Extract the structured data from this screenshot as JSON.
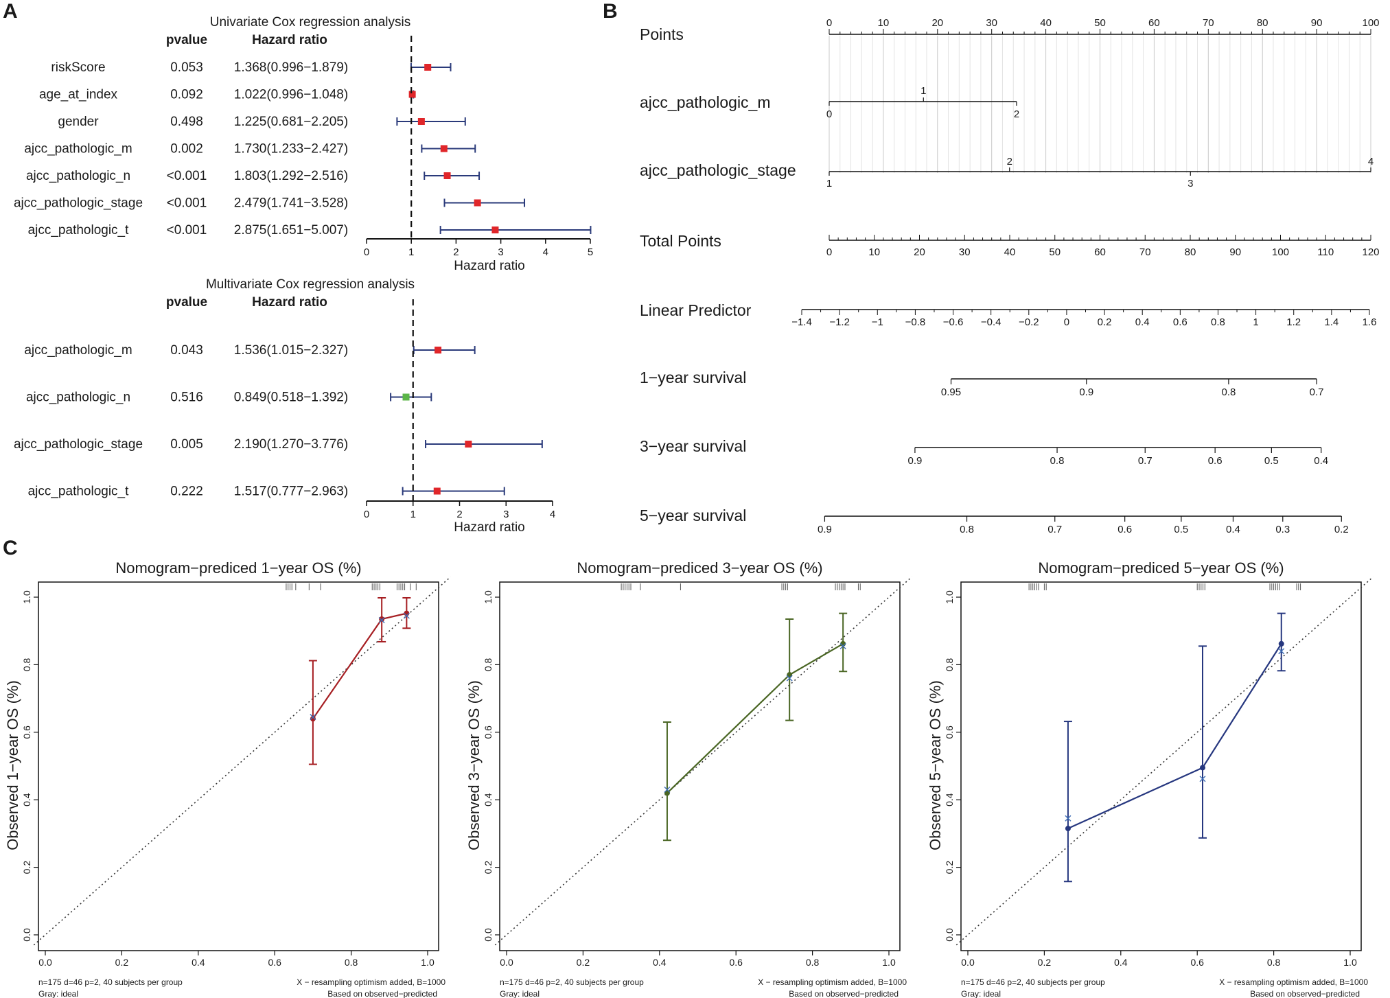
{
  "panels": {
    "a": "A",
    "b": "B",
    "c": "C"
  },
  "forest": {
    "headers": {
      "pvalue": "pvalue",
      "hr": "Hazard ratio"
    },
    "axis_label": "Hazard ratio",
    "univariate": {
      "title": "Univariate Cox regression analysis",
      "xlim": [
        0,
        5
      ],
      "ticks": [
        "0",
        "1",
        "2",
        "3",
        "4",
        "5"
      ],
      "rows": [
        {
          "name": "riskScore",
          "pvalue": "0.053",
          "hr_text": "1.368(0.996−1.879)",
          "hr": 1.368,
          "lo": 0.996,
          "hi": 1.879,
          "color": "#e0262a"
        },
        {
          "name": "age_at_index",
          "pvalue": "0.092",
          "hr_text": "1.022(0.996−1.048)",
          "hr": 1.022,
          "lo": 0.996,
          "hi": 1.048,
          "color": "#e0262a"
        },
        {
          "name": "gender",
          "pvalue": "0.498",
          "hr_text": "1.225(0.681−2.205)",
          "hr": 1.225,
          "lo": 0.681,
          "hi": 2.205,
          "color": "#e0262a"
        },
        {
          "name": "ajcc_pathologic_m",
          "pvalue": "0.002",
          "hr_text": "1.730(1.233−2.427)",
          "hr": 1.73,
          "lo": 1.233,
          "hi": 2.427,
          "color": "#e0262a"
        },
        {
          "name": "ajcc_pathologic_n",
          "pvalue": "<0.001",
          "hr_text": "1.803(1.292−2.516)",
          "hr": 1.803,
          "lo": 1.292,
          "hi": 2.516,
          "color": "#e0262a"
        },
        {
          "name": "ajcc_pathologic_stage",
          "pvalue": "<0.001",
          "hr_text": "2.479(1.741−3.528)",
          "hr": 2.479,
          "lo": 1.741,
          "hi": 3.528,
          "color": "#e0262a"
        },
        {
          "name": "ajcc_pathologic_t",
          "pvalue": "<0.001",
          "hr_text": "2.875(1.651−5.007)",
          "hr": 2.875,
          "lo": 1.651,
          "hi": 5.007,
          "color": "#e0262a"
        }
      ]
    },
    "multivariate": {
      "title": "Multivariate Cox regression analysis",
      "xlim": [
        0,
        4
      ],
      "ticks": [
        "0",
        "1",
        "2",
        "3",
        "4"
      ],
      "rows": [
        {
          "name": "ajcc_pathologic_m",
          "pvalue": "0.043",
          "hr_text": "1.536(1.015−2.327)",
          "hr": 1.536,
          "lo": 1.015,
          "hi": 2.327,
          "color": "#e0262a"
        },
        {
          "name": "ajcc_pathologic_n",
          "pvalue": "0.516",
          "hr_text": "0.849(0.518−1.392)",
          "hr": 0.849,
          "lo": 0.518,
          "hi": 1.392,
          "color": "#5bb548"
        },
        {
          "name": "ajcc_pathologic_stage",
          "pvalue": "0.005",
          "hr_text": "2.190(1.270−3.776)",
          "hr": 2.19,
          "lo": 1.27,
          "hi": 3.776,
          "color": "#e0262a"
        },
        {
          "name": "ajcc_pathologic_t",
          "pvalue": "0.222",
          "hr_text": "1.517(0.777−2.963)",
          "hr": 1.517,
          "lo": 0.777,
          "hi": 2.963,
          "color": "#e0262a"
        }
      ]
    }
  },
  "nomogram": {
    "points": {
      "label": "Points",
      "ticks": [
        "0",
        "10",
        "20",
        "30",
        "40",
        "50",
        "60",
        "70",
        "80",
        "90",
        "100"
      ]
    },
    "m": {
      "label": "ajcc_pathologic_m",
      "values": [
        {
          "text": "0",
          "pts": 0
        },
        {
          "text": "1",
          "pts": 17.4
        },
        {
          "text": "2",
          "pts": 34.6
        }
      ]
    },
    "stage": {
      "label": "ajcc_pathologic_stage",
      "values": [
        {
          "text": "1",
          "pts": 0
        },
        {
          "text": "2",
          "pts": 33.3
        },
        {
          "text": "3",
          "pts": 66.7
        },
        {
          "text": "4",
          "pts": 100
        }
      ]
    },
    "total": {
      "label": "Total Points",
      "ticks": [
        "0",
        "10",
        "20",
        "30",
        "40",
        "50",
        "60",
        "70",
        "80",
        "90",
        "100",
        "110",
        "120"
      ]
    },
    "lp": {
      "label": "Linear Predictor",
      "ticks": [
        "−1.4",
        "−1.2",
        "−1",
        "−0.8",
        "−0.6",
        "−0.4",
        "−0.2",
        "0",
        "0.2",
        "0.4",
        "0.6",
        "0.8",
        "1",
        "1.2",
        "1.4",
        "1.6"
      ]
    },
    "y1": {
      "label": "1−year survival",
      "ticks": [
        {
          "text": "0.95",
          "total": 27
        },
        {
          "text": "0.9",
          "total": 57
        },
        {
          "text": "0.8",
          "total": 88.5
        },
        {
          "text": "0.7",
          "total": 108
        }
      ],
      "range_total": [
        27,
        108
      ]
    },
    "y3": {
      "label": "3−year survival",
      "ticks": [
        {
          "text": "0.9",
          "total": 19
        },
        {
          "text": "0.8",
          "total": 50.5
        },
        {
          "text": "0.7",
          "total": 70
        },
        {
          "text": "0.6",
          "total": 85.5
        },
        {
          "text": "0.5",
          "total": 98
        },
        {
          "text": "0.4",
          "total": 109
        }
      ],
      "range_total": [
        19,
        109
      ]
    },
    "y5": {
      "label": "5−year survival",
      "ticks": [
        {
          "text": "0.9",
          "total": -1
        },
        {
          "text": "0.8",
          "total": 30.5
        },
        {
          "text": "0.7",
          "total": 50
        },
        {
          "text": "0.6",
          "total": 65.5
        },
        {
          "text": "0.5",
          "total": 78
        },
        {
          "text": "0.4",
          "total": 89.5
        },
        {
          "text": "0.3",
          "total": 100.5
        },
        {
          "text": "0.2",
          "total": 113.5
        }
      ],
      "range_total": [
        -1,
        113.5
      ]
    }
  },
  "chart_data": [
    {
      "type": "forest",
      "title": "Univariate Cox regression analysis",
      "xlabel": "Hazard ratio",
      "reference_line": 1,
      "categories": [
        "riskScore",
        "age_at_index",
        "gender",
        "ajcc_pathologic_m",
        "ajcc_pathologic_n",
        "ajcc_pathologic_stage",
        "ajcc_pathologic_t"
      ],
      "hr": [
        1.368,
        1.022,
        1.225,
        1.73,
        1.803,
        2.479,
        2.875
      ],
      "lower": [
        0.996,
        0.996,
        0.681,
        1.233,
        1.292,
        1.741,
        1.651
      ],
      "upper": [
        1.879,
        1.048,
        2.205,
        2.427,
        2.516,
        3.528,
        5.007
      ],
      "xlim": [
        0,
        5
      ]
    },
    {
      "type": "forest",
      "title": "Multivariate Cox regression analysis",
      "xlabel": "Hazard ratio",
      "reference_line": 1,
      "categories": [
        "ajcc_pathologic_m",
        "ajcc_pathologic_n",
        "ajcc_pathologic_stage",
        "ajcc_pathologic_t"
      ],
      "hr": [
        1.536,
        0.849,
        2.19,
        1.517
      ],
      "lower": [
        1.015,
        0.518,
        1.27,
        0.777
      ],
      "upper": [
        2.327,
        1.392,
        3.776,
        2.963
      ],
      "xlim": [
        0,
        4
      ]
    },
    {
      "type": "line",
      "title": "Nomogram−prediced 1−year OS (%)",
      "ylabel": "Observed 1−year OS (%)",
      "color": "#a61e22",
      "xlim": [
        0,
        1
      ],
      "ylim": [
        0,
        1
      ],
      "x": [
        0.7,
        0.88,
        0.945
      ],
      "y": [
        0.64,
        0.935,
        0.952
      ],
      "lower": [
        0.505,
        0.868,
        0.908
      ],
      "upper": [
        0.812,
        0.998,
        0.998
      ],
      "corrected_y": [
        0.645,
        0.932,
        0.945
      ],
      "rug": [
        0.63,
        0.635,
        0.64,
        0.645,
        0.655,
        0.69,
        0.72,
        0.855,
        0.86,
        0.865,
        0.87,
        0.875,
        0.92,
        0.925,
        0.93,
        0.935,
        0.94,
        0.955,
        0.97
      ],
      "note_left": [
        "n=175 d=46 p=2, 40 subjects per group",
        "Gray: ideal"
      ],
      "note_right": [
        "X − resampling optimism added, B=1000",
        "Based on observed−predicted"
      ],
      "ticks": [
        "0.0",
        "0.2",
        "0.4",
        "0.6",
        "0.8",
        "1.0"
      ]
    },
    {
      "type": "line",
      "title": "Nomogram−prediced 3−year OS (%)",
      "ylabel": "Observed 3−year OS (%)",
      "color": "#4a6624",
      "xlim": [
        0,
        1
      ],
      "ylim": [
        0,
        1
      ],
      "x": [
        0.42,
        0.74,
        0.88
      ],
      "y": [
        0.42,
        0.77,
        0.862
      ],
      "lower": [
        0.28,
        0.635,
        0.78
      ],
      "upper": [
        0.63,
        0.935,
        0.952
      ],
      "corrected_y": [
        0.43,
        0.76,
        0.855
      ],
      "rug": [
        0.3,
        0.305,
        0.31,
        0.315,
        0.32,
        0.325,
        0.35,
        0.455,
        0.72,
        0.725,
        0.73,
        0.735,
        0.86,
        0.865,
        0.87,
        0.875,
        0.88,
        0.885,
        0.92,
        0.925
      ],
      "note_left": [
        "n=175 d=46 p=2, 40 subjects per group",
        "Gray: ideal"
      ],
      "note_right": [
        "X − resampling optimism added, B=1000",
        "Based on observed−predicted"
      ],
      "ticks": [
        "0.0",
        "0.2",
        "0.4",
        "0.6",
        "0.8",
        "1.0"
      ]
    },
    {
      "type": "line",
      "title": "Nomogram−prediced 5−year OS (%)",
      "ylabel": "Observed 5−year OS (%)",
      "color": "#26377f",
      "xlim": [
        0,
        1
      ],
      "ylim": [
        0,
        1
      ],
      "x": [
        0.262,
        0.614,
        0.82
      ],
      "y": [
        0.315,
        0.495,
        0.862
      ],
      "lower": [
        0.158,
        0.287,
        0.782
      ],
      "upper": [
        0.632,
        0.855,
        0.952
      ],
      "corrected_y": [
        0.345,
        0.462,
        0.84
      ],
      "rug": [
        0.16,
        0.165,
        0.17,
        0.175,
        0.18,
        0.185,
        0.2,
        0.205,
        0.6,
        0.605,
        0.61,
        0.615,
        0.62,
        0.79,
        0.795,
        0.8,
        0.805,
        0.81,
        0.815,
        0.86,
        0.865,
        0.87
      ],
      "note_left": [
        "n=175 d=46 p=2, 40 subjects per group",
        "Gray: ideal"
      ],
      "note_right": [
        "X − resampling optimism added, B=1000",
        "Based on observed−predicted"
      ],
      "ticks": [
        "0.0",
        "0.2",
        "0.4",
        "0.6",
        "0.8",
        "1.0"
      ]
    }
  ]
}
